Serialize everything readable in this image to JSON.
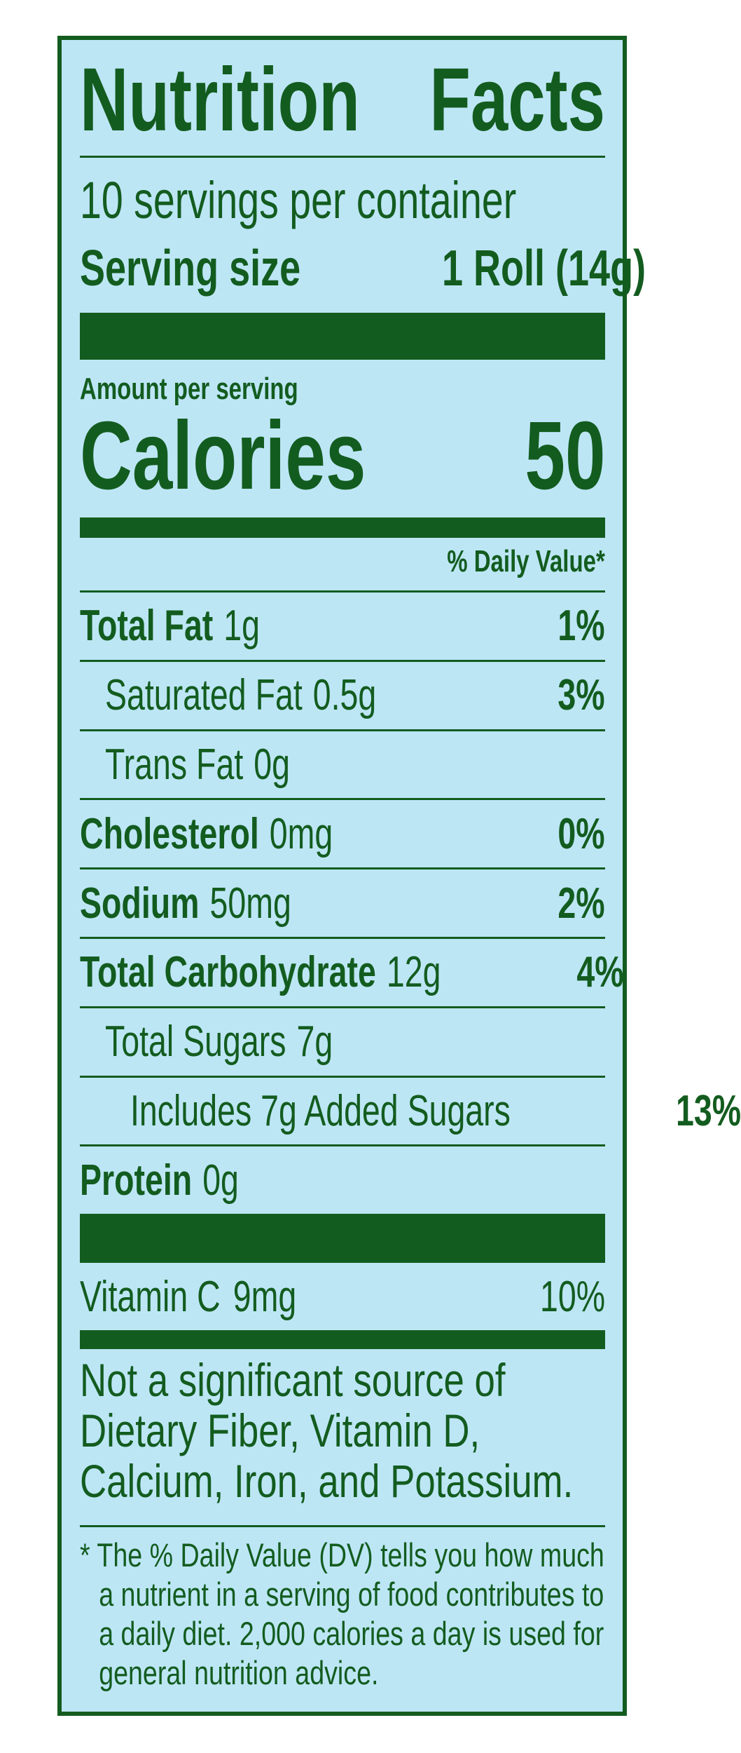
{
  "header": {
    "title": "Nutrition Facts",
    "servings": "10 servings per container",
    "serving_size_label": "Serving size",
    "serving_size_value": "1 Roll (14g)"
  },
  "calories": {
    "amount_label": "Amount per serving",
    "label": "Calories",
    "value": "50"
  },
  "daily_value_header": "% Daily Value*",
  "nutrients": [
    {
      "name": "Total Fat",
      "amount": "1g",
      "dv": "1%",
      "sub": [
        {
          "name": "Saturated Fat",
          "amount": "0.5g",
          "dv": "3%"
        },
        {
          "name": "Trans Fat",
          "amount": "0g"
        }
      ]
    },
    {
      "name": "Cholesterol",
      "amount": "0mg",
      "dv": "0%"
    },
    {
      "name": "Sodium",
      "amount": "50mg",
      "dv": "2%"
    },
    {
      "name": "Total Carbohydrate",
      "amount": "12g",
      "dv": "4%",
      "sub": [
        {
          "name": "Total Sugars",
          "amount": "7g",
          "sub": [
            {
              "name": "Includes 7g Added Sugars",
              "dv": "13%"
            }
          ]
        }
      ]
    },
    {
      "name": "Protein",
      "amount": "0g"
    }
  ],
  "vitamins": [
    {
      "name": "Vitamin C",
      "amount": "9mg",
      "dv": "10%"
    }
  ],
  "footnote": "Not a significant source of Dietary Fiber, Vitamin D, Calcium, Iron, and Potassium.",
  "dv_note": "* The % Daily Value (DV) tells you how much a nutrient in a serving of food contributes to a daily diet. 2,000 calories a day is used for general nutrition advice."
}
